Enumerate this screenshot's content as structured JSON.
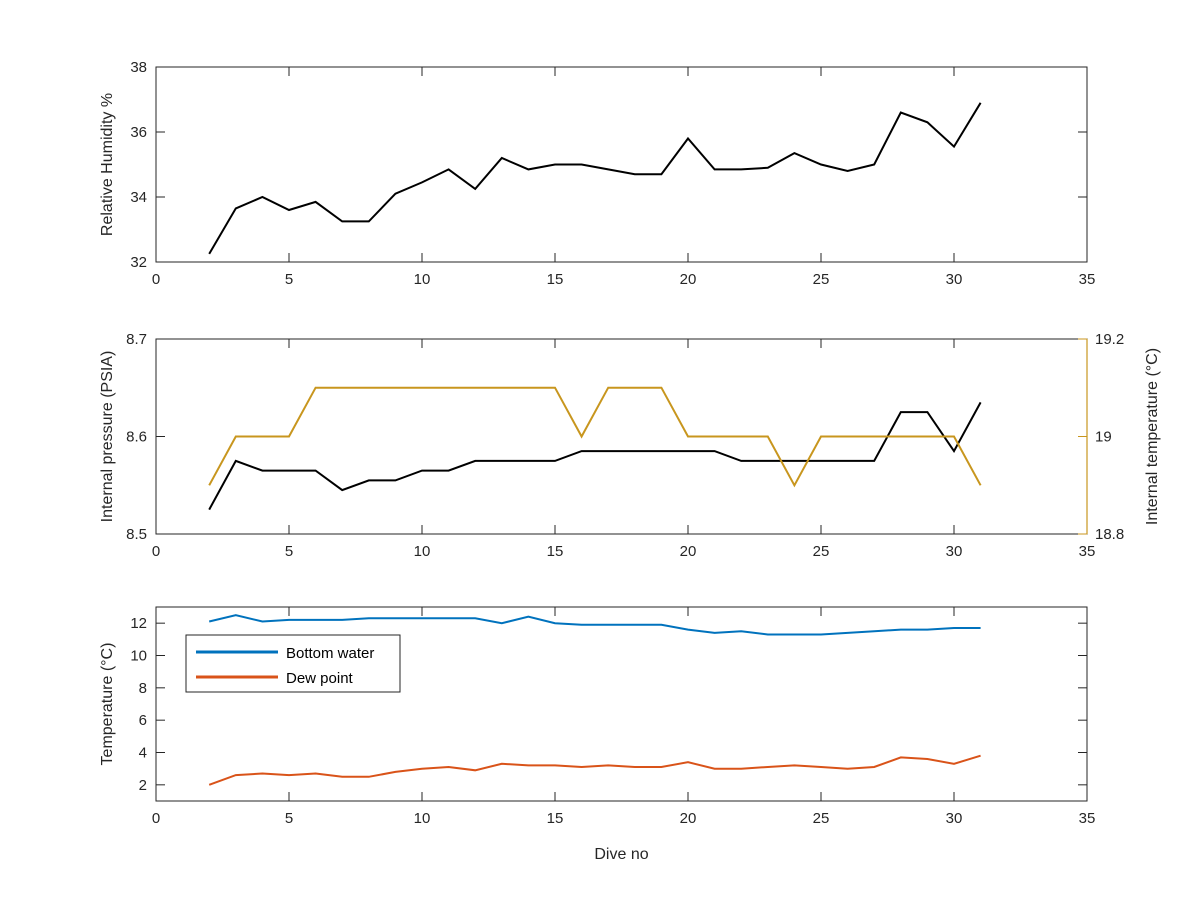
{
  "chart_data": [
    {
      "type": "line",
      "xlabel": "",
      "ylabel": "Relative Humidity %",
      "xlim": [
        0,
        35
      ],
      "ylim": [
        32,
        38
      ],
      "xticks": [
        0,
        5,
        10,
        15,
        20,
        25,
        30,
        35
      ],
      "yticks": [
        32,
        34,
        36,
        38
      ],
      "x": [
        2,
        3,
        4,
        5,
        6,
        7,
        8,
        9,
        10,
        11,
        12,
        13,
        14,
        15,
        16,
        17,
        18,
        19,
        20,
        21,
        22,
        23,
        24,
        25,
        26,
        27,
        28,
        29,
        30,
        31
      ],
      "series": [
        {
          "color": "#000000",
          "values": [
            32.25,
            33.65,
            34.0,
            33.6,
            33.85,
            33.25,
            33.25,
            34.1,
            34.45,
            34.85,
            34.25,
            35.2,
            34.85,
            35.0,
            35.0,
            34.85,
            34.7,
            34.7,
            35.8,
            34.85,
            34.85,
            34.9,
            35.35,
            35.0,
            34.8,
            35.0,
            36.6,
            36.3,
            35.55,
            36.9
          ]
        }
      ]
    },
    {
      "type": "line",
      "xlabel": "",
      "ylabel": "Internal pressure (PSIA)",
      "ylabel_right": "Internal temperature (°C)",
      "xlim": [
        0,
        35
      ],
      "ylim": [
        8.5,
        8.7
      ],
      "ylim_right": [
        18.8,
        19.2
      ],
      "xticks": [
        0,
        5,
        10,
        15,
        20,
        25,
        30,
        35
      ],
      "yticks": [
        "8.5",
        "8.6",
        "8.7"
      ],
      "yticks_right": [
        "18.8",
        "19",
        "19.2"
      ],
      "x": [
        2,
        3,
        4,
        5,
        6,
        7,
        8,
        9,
        10,
        11,
        12,
        13,
        14,
        15,
        16,
        17,
        18,
        19,
        20,
        21,
        22,
        23,
        24,
        25,
        26,
        27,
        28,
        29,
        30,
        31
      ],
      "series": [
        {
          "axis": "left",
          "color": "#000000",
          "values": [
            8.525,
            8.575,
            8.565,
            8.565,
            8.565,
            8.545,
            8.555,
            8.555,
            8.565,
            8.565,
            8.575,
            8.575,
            8.575,
            8.575,
            8.585,
            8.585,
            8.585,
            8.585,
            8.585,
            8.585,
            8.575,
            8.575,
            8.575,
            8.575,
            8.575,
            8.575,
            8.625,
            8.625,
            8.585,
            8.635
          ]
        },
        {
          "axis": "right",
          "color": "#c8961e",
          "values": [
            18.9,
            19.0,
            19.0,
            19.0,
            19.1,
            19.1,
            19.1,
            19.1,
            19.1,
            19.1,
            19.1,
            19.1,
            19.1,
            19.1,
            19.0,
            19.1,
            19.1,
            19.1,
            19.0,
            19.0,
            19.0,
            19.0,
            18.9,
            19.0,
            19.0,
            19.0,
            19.0,
            19.0,
            19.0,
            18.9
          ]
        }
      ]
    },
    {
      "type": "line",
      "xlabel": "Dive no",
      "ylabel": "Temperature (°C)",
      "xlim": [
        0,
        35
      ],
      "ylim": [
        1,
        13
      ],
      "xticks": [
        0,
        5,
        10,
        15,
        20,
        25,
        30,
        35
      ],
      "yticks": [
        2,
        4,
        6,
        8,
        10,
        12
      ],
      "legend_position": "top-left",
      "x": [
        2,
        3,
        4,
        5,
        6,
        7,
        8,
        9,
        10,
        11,
        12,
        13,
        14,
        15,
        16,
        17,
        18,
        19,
        20,
        21,
        22,
        23,
        24,
        25,
        26,
        27,
        28,
        29,
        30,
        31
      ],
      "series": [
        {
          "name": "Bottom water",
          "color": "#0072bd",
          "values": [
            12.1,
            12.5,
            12.1,
            12.2,
            12.2,
            12.2,
            12.3,
            12.3,
            12.3,
            12.3,
            12.3,
            12.0,
            12.4,
            12.0,
            11.9,
            11.9,
            11.9,
            11.9,
            11.6,
            11.4,
            11.5,
            11.3,
            11.3,
            11.3,
            11.4,
            11.5,
            11.6,
            11.6,
            11.7,
            11.7
          ]
        },
        {
          "name": "Dew point",
          "color": "#d95319",
          "values": [
            2.0,
            2.6,
            2.7,
            2.6,
            2.7,
            2.5,
            2.5,
            2.8,
            3.0,
            3.1,
            2.9,
            3.3,
            3.2,
            3.2,
            3.1,
            3.2,
            3.1,
            3.1,
            3.4,
            3.0,
            3.0,
            3.1,
            3.2,
            3.1,
            3.0,
            3.1,
            3.7,
            3.6,
            3.3,
            3.8
          ]
        }
      ]
    }
  ]
}
